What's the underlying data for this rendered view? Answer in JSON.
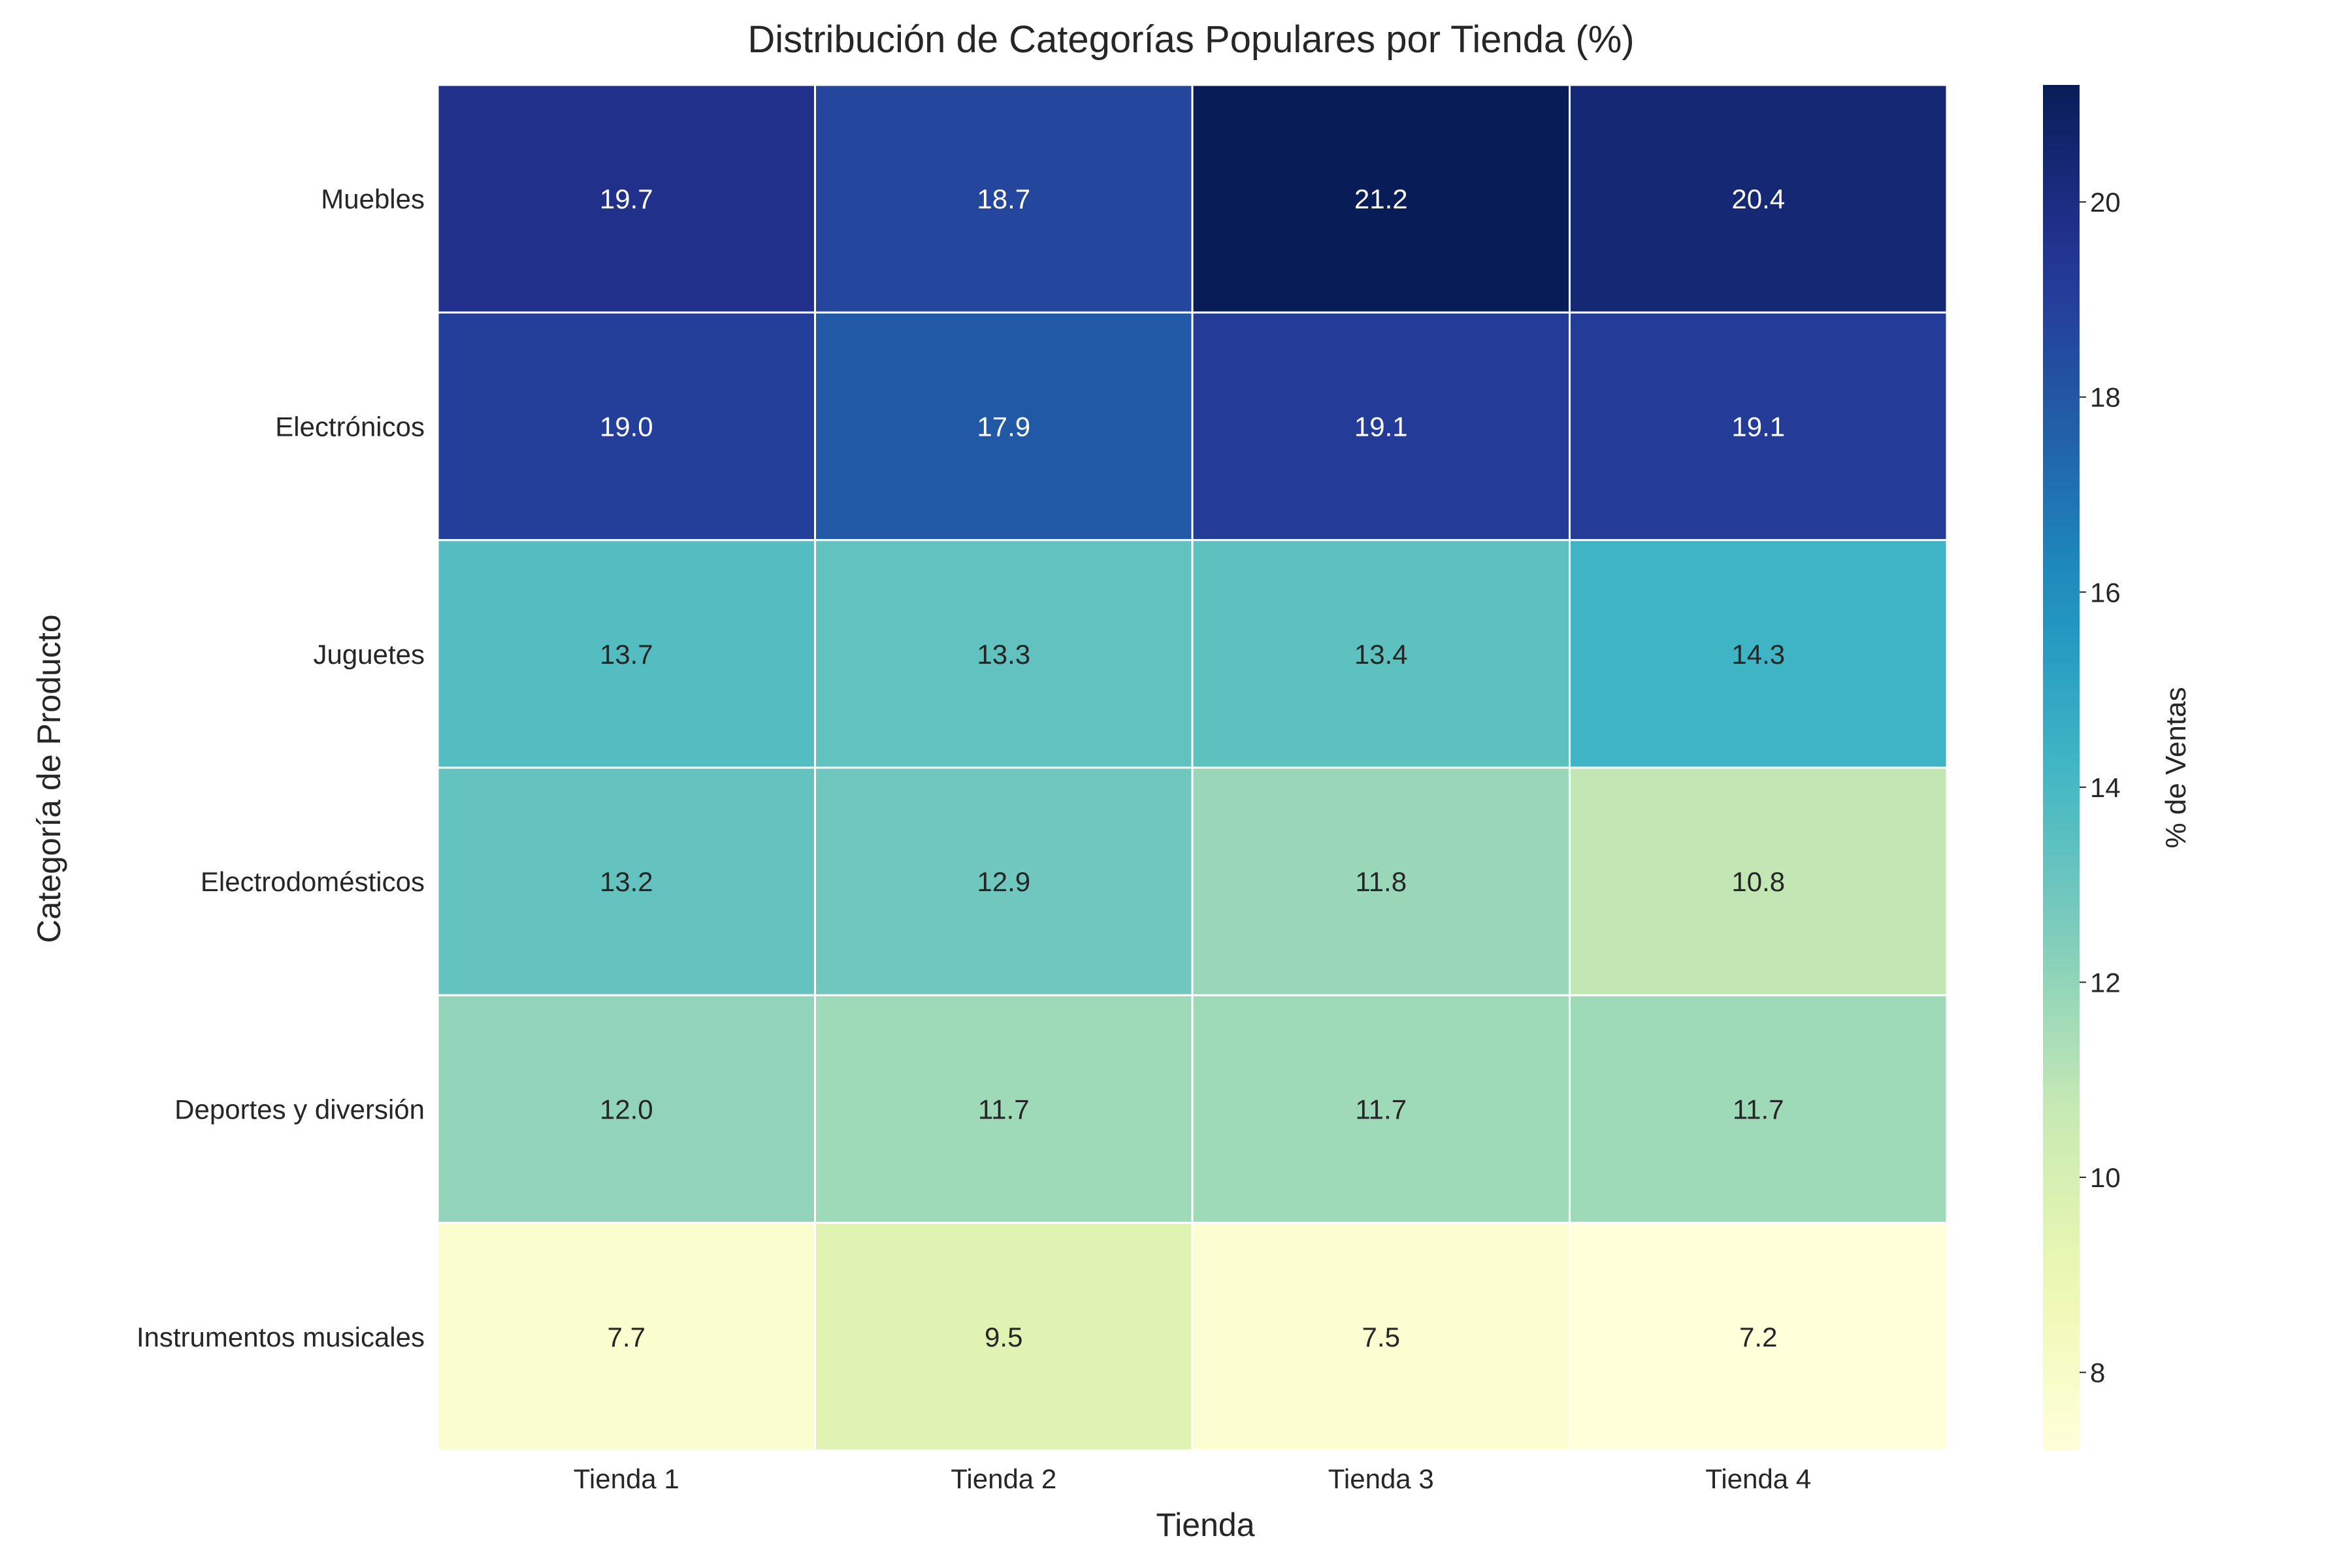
{
  "chart_data": {
    "type": "heatmap",
    "title": "Distribución de Categorías Populares por Tienda (%)",
    "xlabel": "Tienda",
    "ylabel": "Categoría de Producto",
    "x_categories": [
      "Tienda 1",
      "Tienda 2",
      "Tienda 3",
      "Tienda 4"
    ],
    "y_categories": [
      "Muebles",
      "Electrónicos",
      "Juguetes",
      "Electrodomésticos",
      "Deportes y diversión",
      "Instrumentos musicales"
    ],
    "values": [
      [
        19.7,
        18.7,
        21.2,
        20.4
      ],
      [
        19.0,
        17.9,
        19.1,
        19.1
      ],
      [
        13.7,
        13.3,
        13.4,
        14.3
      ],
      [
        13.2,
        12.9,
        11.8,
        10.8
      ],
      [
        12.0,
        11.7,
        11.7,
        11.7
      ],
      [
        7.7,
        9.5,
        7.5,
        7.2
      ]
    ],
    "colorbar": {
      "label": "% de Ventas",
      "range": [
        7.2,
        21.2
      ],
      "ticks": [
        8,
        10,
        12,
        14,
        16,
        18,
        20
      ],
      "colormap": "YlGnBu"
    },
    "grid": false,
    "cell_border_color": "#ffffff"
  }
}
